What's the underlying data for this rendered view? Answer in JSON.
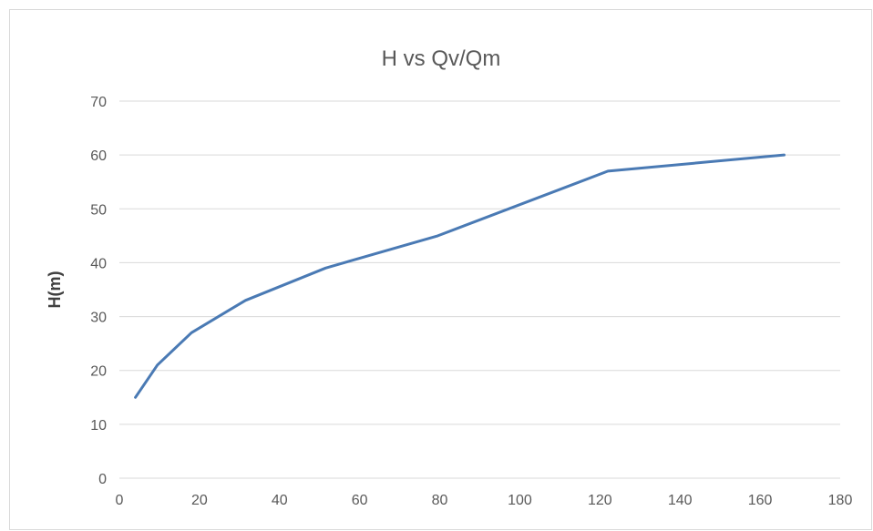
{
  "chart_data": {
    "type": "line",
    "title": "H vs Qv/Qm",
    "xlabel": "",
    "ylabel": "H(m)",
    "xlim": [
      0,
      180
    ],
    "ylim": [
      0,
      70
    ],
    "x_ticks": [
      "0",
      "20",
      "40",
      "60",
      "80",
      "100",
      "120",
      "140",
      "160",
      "180"
    ],
    "y_ticks": [
      "0",
      "10",
      "20",
      "30",
      "40",
      "50",
      "60",
      "70"
    ],
    "grid": "horizontal",
    "legend": "none",
    "series": [
      {
        "color": "#4a7ab4",
        "x": [
          4,
          9.5,
          18,
          31.5,
          51.5,
          79.5,
          122,
          166
        ],
        "y": [
          15,
          21,
          27,
          33,
          39,
          45,
          57,
          60
        ]
      }
    ]
  }
}
